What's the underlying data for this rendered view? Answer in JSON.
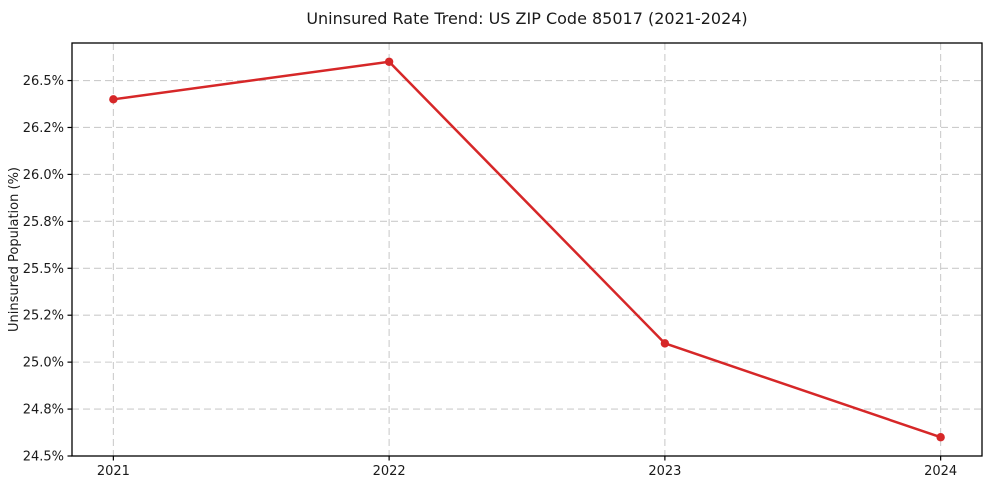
{
  "chart_data": {
    "type": "line",
    "title": "Uninsured Rate Trend: US ZIP Code 85017 (2021-2024)",
    "xlabel": "",
    "ylabel": "Uninsured Population (%)",
    "x": [
      2021,
      2022,
      2023,
      2024
    ],
    "values": [
      26.4,
      26.6,
      25.1,
      24.6
    ],
    "xlim": [
      2020.85,
      2024.15
    ],
    "ylim": [
      24.5,
      26.7
    ],
    "xtick_values": [
      2021,
      2022,
      2023,
      2024
    ],
    "xtick_labels": [
      "2021",
      "2022",
      "2023",
      "2024"
    ],
    "ytick_values": [
      24.5,
      24.75,
      25.0,
      25.25,
      25.5,
      25.75,
      26.0,
      26.25,
      26.5
    ],
    "ytick_labels": [
      "24.5%",
      "24.8%",
      "25.0%",
      "25.2%",
      "25.5%",
      "25.8%",
      "26.0%",
      "26.2%",
      "26.5%"
    ],
    "grid": true,
    "grid_style": "dashed",
    "legend": false,
    "marker": "circle",
    "colors": {
      "line": "#d62728",
      "marker": "#d62728",
      "grid": "#cccccc",
      "spine": "#000000",
      "text": "#1a1a1a",
      "background": "#ffffff"
    }
  }
}
